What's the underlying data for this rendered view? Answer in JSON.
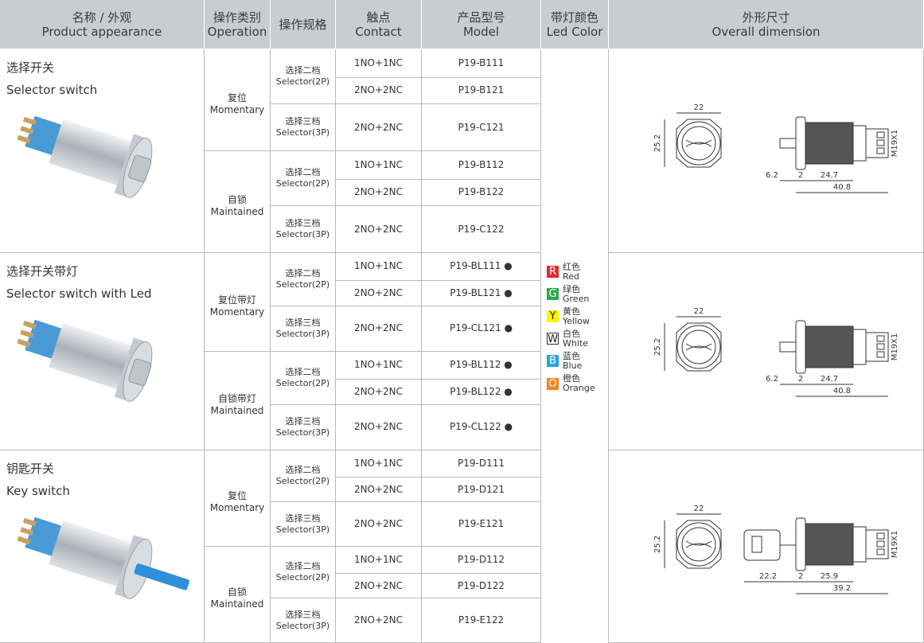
{
  "header": {
    "columns": [
      {
        "zh": "名称 / 外观",
        "en": "Product appearance"
      },
      {
        "zh": "操作类别",
        "en": "Operation"
      },
      {
        "zh": "操作规格"
      },
      {
        "zh": "触点",
        "en": "Contact"
      },
      {
        "zh": "产品型号",
        "en": "Model"
      },
      {
        "zh": "带灯颜色",
        "en": "Led Color"
      },
      {
        "zh": "外形尺寸",
        "en": "Overall dimension"
      }
    ]
  },
  "sections": [
    {
      "name_zh": "选择开关",
      "name_en": "Selector switch",
      "groups": [
        {
          "type_zh": "复位",
          "type_en": "Momentary",
          "specs": [
            {
              "zh": "选择二档",
              "en": "Selector(2P)",
              "rows": [
                {
                  "contact": "1NO+1NC",
                  "model": "P19-B111"
                },
                {
                  "contact": "2NO+2NC",
                  "model": "P19-B121"
                }
              ]
            },
            {
              "zh": "选择三档",
              "en": "Selector(3P)",
              "rows": [
                {
                  "contact": "2NO+2NC",
                  "model": "P19-C121"
                }
              ]
            }
          ]
        },
        {
          "type_zh": "自锁",
          "type_en": "Maintained",
          "specs": [
            {
              "zh": "选择二档",
              "en": "Selector(2P)",
              "rows": [
                {
                  "contact": "1NO+1NC",
                  "model": "P19-B112"
                },
                {
                  "contact": "2NO+2NC",
                  "model": "P19-B122"
                }
              ]
            },
            {
              "zh": "选择三档",
              "en": "Selector(3P)",
              "rows": [
                {
                  "contact": "2NO+2NC",
                  "model": "P19-C122"
                }
              ]
            }
          ]
        }
      ],
      "dimensions": {
        "width": "22",
        "height": "25.2",
        "front": "6.2",
        "gap": "2",
        "body": "24.7",
        "length": "40.8",
        "thread": "M19X1"
      }
    },
    {
      "name_zh": "选择开关带灯",
      "name_en": "Selector switch with Led",
      "groups": [
        {
          "type_zh": "复位带灯",
          "type_en": "Momentary",
          "specs": [
            {
              "zh": "选择二档",
              "en": "Selector(2P)",
              "rows": [
                {
                  "contact": "1NO+1NC",
                  "model": "P19-BL111 ●"
                },
                {
                  "contact": "2NO+2NC",
                  "model": "P19-BL121 ●"
                }
              ]
            },
            {
              "zh": "选择三档",
              "en": "Selector(3P)",
              "rows": [
                {
                  "contact": "2NO+2NC",
                  "model": "P19-CL121 ●"
                }
              ]
            }
          ]
        },
        {
          "type_zh": "自锁带灯",
          "type_en": "Maintained",
          "specs": [
            {
              "zh": "选择二档",
              "en": "Selector(2P)",
              "rows": [
                {
                  "contact": "1NO+1NC",
                  "model": "P19-BL112 ●"
                },
                {
                  "contact": "2NO+2NC",
                  "model": "P19-BL122 ●"
                }
              ]
            },
            {
              "zh": "选择三档",
              "en": "Selector(3P)",
              "rows": [
                {
                  "contact": "2NO+2NC",
                  "model": "P19-CL122 ●"
                }
              ]
            }
          ]
        }
      ],
      "dimensions": {
        "width": "22",
        "height": "25.2",
        "front": "6.2",
        "gap": "2",
        "body": "24.7",
        "length": "40.8",
        "thread": "M19X1"
      }
    },
    {
      "name_zh": "钥匙开关",
      "name_en": "Key switch",
      "groups": [
        {
          "type_zh": "复位",
          "type_en": "Momentary",
          "specs": [
            {
              "zh": "选择二档",
              "en": "Selector(2P)",
              "rows": [
                {
                  "contact": "1NO+1NC",
                  "model": "P19-D111"
                },
                {
                  "contact": "2NO+2NC",
                  "model": "P19-D121"
                }
              ]
            },
            {
              "zh": "选择三档",
              "en": "Selector(3P)",
              "rows": [
                {
                  "contact": "2NO+2NC",
                  "model": "P19-E121"
                }
              ]
            }
          ]
        },
        {
          "type_zh": "自锁",
          "type_en": "Maintained",
          "specs": [
            {
              "zh": "选择二档",
              "en": "Selector(2P)",
              "rows": [
                {
                  "contact": "1NO+1NC",
                  "model": "P19-D112"
                },
                {
                  "contact": "2NO+2NC",
                  "model": "P19-D122"
                }
              ]
            },
            {
              "zh": "选择三档",
              "en": "Selector(3P)",
              "rows": [
                {
                  "contact": "2NO+2NC",
                  "model": "P19-E122"
                }
              ]
            }
          ]
        }
      ],
      "dimensions": {
        "width": "22",
        "height": "25.2",
        "front": "22.2",
        "gap": "2",
        "body": "25.9",
        "length": "39.2",
        "thread": "M19X1"
      }
    }
  ],
  "led_colors": [
    {
      "letter": "R",
      "zh": "红色",
      "en": "Red",
      "color": "#e4262e"
    },
    {
      "letter": "G",
      "zh": "绿色",
      "en": "Green",
      "color": "#2faa4a"
    },
    {
      "letter": "Y",
      "zh": "黄色",
      "en": "Yellow",
      "color": "#fff200"
    },
    {
      "letter": "W",
      "zh": "白色",
      "en": "White",
      "color": "#ffffff"
    },
    {
      "letter": "B",
      "zh": "蓝色",
      "en": "Blue",
      "color": "#27a3dd"
    },
    {
      "letter": "O",
      "zh": "橙色",
      "en": "Orange",
      "color": "#f58220"
    }
  ]
}
